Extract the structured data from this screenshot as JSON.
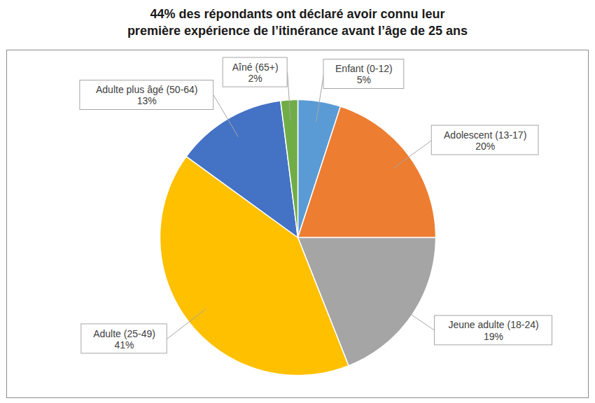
{
  "chart_data": {
    "type": "pie",
    "title": "44% des répondants ont déclaré avoir connu leur\npremière expérience de l’itinérance avant l’âge de 25 ans",
    "categories": [
      "Enfant (0-12)",
      "Adolescent (13-17)",
      "Jeune adulte (18-24)",
      "Adulte (25-49)",
      "Adulte plus âgé (50-64)",
      "Aîné (65+)"
    ],
    "values": [
      5,
      20,
      19,
      41,
      13,
      2
    ],
    "value_labels": [
      "5%",
      "20%",
      "19%",
      "41%",
      "13%",
      "2%"
    ],
    "colors": [
      "#5b9bd5",
      "#ed7d31",
      "#a5a5a5",
      "#ffc000",
      "#4472c4",
      "#70ad47"
    ],
    "data_labels": true
  }
}
